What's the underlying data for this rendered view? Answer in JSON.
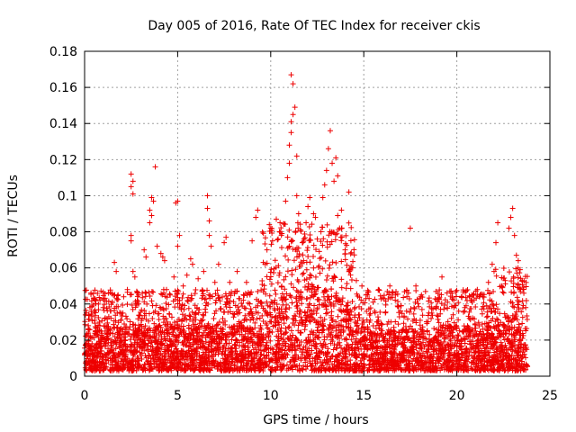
{
  "chart_data": {
    "type": "scatter",
    "title": "Day 005 of 2016, Rate Of TEC Index for receiver ckis",
    "xlabel": "GPS time / hours",
    "ylabel": "ROTI / TECUs",
    "xlim": [
      0,
      25
    ],
    "ylim": [
      0,
      0.18
    ],
    "xticks": [
      0,
      5,
      10,
      15,
      20,
      25
    ],
    "xtick_labels": [
      "0",
      "5",
      "10",
      "15",
      "20",
      "25"
    ],
    "yticks": [
      0,
      0.02,
      0.04,
      0.06,
      0.08,
      0.1,
      0.12,
      0.14,
      0.16,
      0.18
    ],
    "ytick_labels": [
      "0",
      "0.02",
      "0.04",
      "0.06",
      "0.08",
      "0.1",
      "0.12",
      "0.14",
      "0.16",
      "0.18"
    ],
    "grid": true,
    "marker": "+",
    "color": "#ee0000",
    "series": [
      {
        "name": "ROTI",
        "points": [
          [
            0.0,
            0.012
          ],
          [
            0.1,
            0.035
          ],
          [
            0.2,
            0.028
          ],
          [
            0.3,
            0.022
          ],
          [
            0.4,
            0.018
          ],
          [
            0.6,
            0.025
          ],
          [
            0.8,
            0.03
          ],
          [
            1.0,
            0.038
          ],
          [
            1.3,
            0.033
          ],
          [
            1.5,
            0.041
          ],
          [
            1.6,
            0.063
          ],
          [
            1.7,
            0.058
          ],
          [
            1.8,
            0.045
          ],
          [
            2.1,
            0.044
          ],
          [
            2.3,
            0.048
          ],
          [
            2.5,
            0.078
          ],
          [
            2.5,
            0.105
          ],
          [
            2.5,
            0.112
          ],
          [
            2.6,
            0.108
          ],
          [
            2.6,
            0.101
          ],
          [
            2.5,
            0.075
          ],
          [
            2.6,
            0.058
          ],
          [
            2.7,
            0.055
          ],
          [
            2.8,
            0.047
          ],
          [
            2.9,
            0.045
          ],
          [
            3.1,
            0.046
          ],
          [
            3.2,
            0.07
          ],
          [
            3.3,
            0.066
          ],
          [
            3.5,
            0.085
          ],
          [
            3.5,
            0.092
          ],
          [
            3.6,
            0.099
          ],
          [
            3.6,
            0.089
          ],
          [
            3.7,
            0.097
          ],
          [
            3.8,
            0.116
          ],
          [
            3.9,
            0.072
          ],
          [
            4.1,
            0.068
          ],
          [
            4.2,
            0.066
          ],
          [
            4.3,
            0.064
          ],
          [
            4.4,
            0.048
          ],
          [
            4.6,
            0.045
          ],
          [
            4.8,
            0.055
          ],
          [
            4.9,
            0.096
          ],
          [
            5.0,
            0.097
          ],
          [
            5.0,
            0.072
          ],
          [
            5.1,
            0.078
          ],
          [
            5.3,
            0.05
          ],
          [
            5.5,
            0.056
          ],
          [
            5.7,
            0.065
          ],
          [
            5.8,
            0.062
          ],
          [
            6.1,
            0.054
          ],
          [
            6.4,
            0.058
          ],
          [
            6.6,
            0.1
          ],
          [
            6.6,
            0.093
          ],
          [
            6.7,
            0.086
          ],
          [
            6.7,
            0.078
          ],
          [
            6.8,
            0.072
          ],
          [
            7.0,
            0.052
          ],
          [
            7.2,
            0.062
          ],
          [
            7.5,
            0.074
          ],
          [
            7.6,
            0.077
          ],
          [
            7.8,
            0.052
          ],
          [
            8.2,
            0.058
          ],
          [
            8.7,
            0.052
          ],
          [
            9.0,
            0.075
          ],
          [
            9.2,
            0.088
          ],
          [
            9.3,
            0.092
          ],
          [
            9.6,
            0.063
          ],
          [
            9.7,
            0.062
          ],
          [
            9.8,
            0.07
          ],
          [
            10.0,
            0.082
          ],
          [
            10.1,
            0.075
          ],
          [
            10.3,
            0.087
          ],
          [
            10.4,
            0.076
          ],
          [
            10.5,
            0.085
          ],
          [
            10.6,
            0.079
          ],
          [
            10.8,
            0.097
          ],
          [
            10.9,
            0.11
          ],
          [
            11.0,
            0.128
          ],
          [
            11.0,
            0.118
          ],
          [
            11.1,
            0.135
          ],
          [
            11.1,
            0.141
          ],
          [
            11.2,
            0.145
          ],
          [
            11.2,
            0.162
          ],
          [
            11.1,
            0.167
          ],
          [
            11.3,
            0.149
          ],
          [
            11.4,
            0.122
          ],
          [
            11.4,
            0.1
          ],
          [
            11.5,
            0.09
          ],
          [
            11.6,
            0.081
          ],
          [
            11.7,
            0.074
          ],
          [
            11.9,
            0.085
          ],
          [
            12.0,
            0.094
          ],
          [
            12.1,
            0.099
          ],
          [
            12.3,
            0.09
          ],
          [
            12.4,
            0.088
          ],
          [
            12.5,
            0.076
          ],
          [
            12.7,
            0.08
          ],
          [
            12.8,
            0.099
          ],
          [
            12.9,
            0.106
          ],
          [
            13.0,
            0.114
          ],
          [
            13.1,
            0.126
          ],
          [
            13.2,
            0.136
          ],
          [
            13.3,
            0.118
          ],
          [
            13.4,
            0.108
          ],
          [
            13.5,
            0.121
          ],
          [
            13.6,
            0.111
          ],
          [
            13.6,
            0.089
          ],
          [
            13.7,
            0.082
          ],
          [
            13.8,
            0.092
          ],
          [
            14.0,
            0.07
          ],
          [
            14.2,
            0.102
          ],
          [
            14.4,
            0.06
          ],
          [
            14.6,
            0.053
          ],
          [
            14.9,
            0.05
          ],
          [
            15.2,
            0.045
          ],
          [
            15.5,
            0.041
          ],
          [
            15.8,
            0.048
          ],
          [
            16.1,
            0.043
          ],
          [
            16.4,
            0.05
          ],
          [
            16.7,
            0.045
          ],
          [
            17.0,
            0.039
          ],
          [
            17.3,
            0.036
          ],
          [
            17.5,
            0.082
          ],
          [
            17.8,
            0.05
          ],
          [
            18.1,
            0.045
          ],
          [
            18.5,
            0.035
          ],
          [
            18.9,
            0.038
          ],
          [
            19.2,
            0.055
          ],
          [
            19.5,
            0.041
          ],
          [
            19.8,
            0.034
          ],
          [
            20.1,
            0.036
          ],
          [
            20.5,
            0.039
          ],
          [
            20.9,
            0.045
          ],
          [
            21.1,
            0.048
          ],
          [
            21.4,
            0.044
          ],
          [
            21.7,
            0.052
          ],
          [
            21.9,
            0.062
          ],
          [
            22.0,
            0.058
          ],
          [
            22.1,
            0.074
          ],
          [
            22.2,
            0.085
          ],
          [
            22.4,
            0.05
          ],
          [
            22.6,
            0.053
          ],
          [
            22.8,
            0.082
          ],
          [
            22.9,
            0.088
          ],
          [
            23.0,
            0.093
          ],
          [
            23.1,
            0.078
          ],
          [
            23.2,
            0.067
          ],
          [
            23.3,
            0.064
          ],
          [
            23.4,
            0.059
          ],
          [
            23.5,
            0.053
          ],
          [
            23.6,
            0.046
          ],
          [
            23.7,
            0.038
          ]
        ],
        "dense_band": {
          "x_range": [
            0,
            23.8
          ],
          "y_low": 0.003,
          "y_high": 0.03
        }
      }
    ]
  }
}
